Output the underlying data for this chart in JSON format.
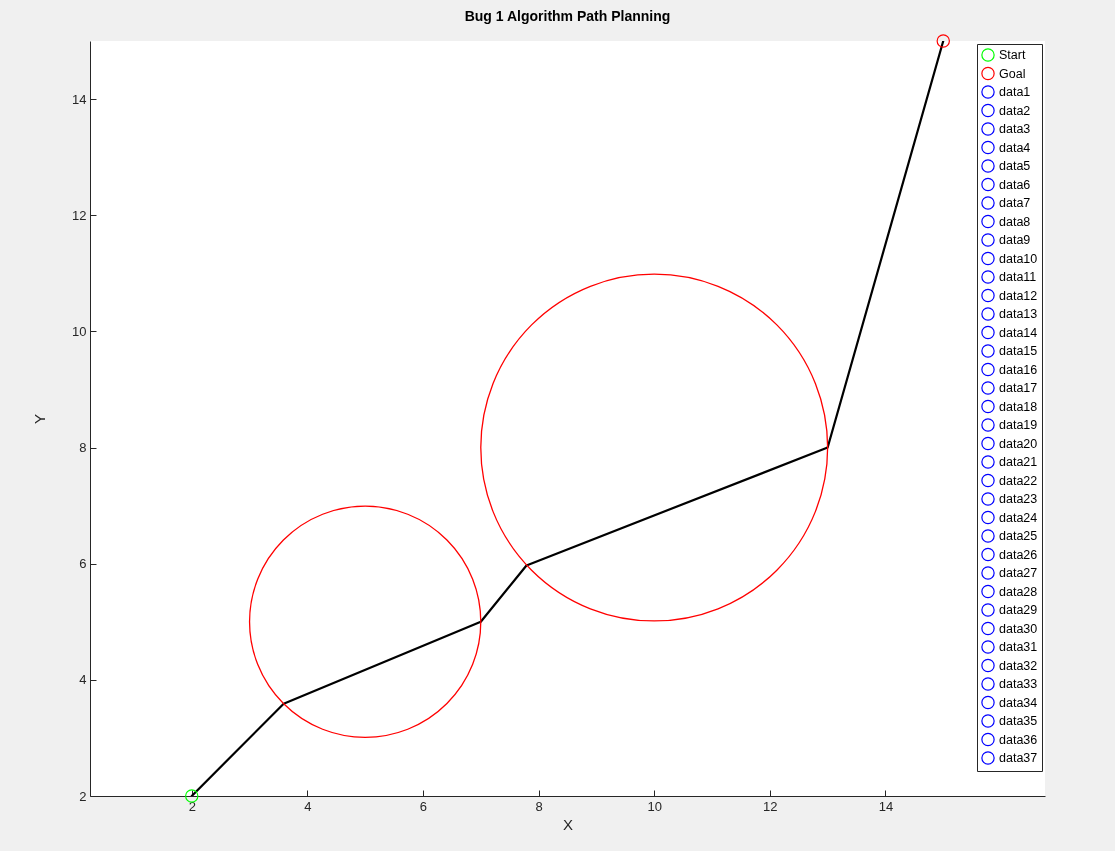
{
  "chart_data": {
    "type": "line",
    "title": "Bug 1 Algorithm Path Planning",
    "xlabel": "X",
    "ylabel": "Y",
    "xlim": [
      0.24,
      16.76
    ],
    "ylim": [
      2,
      15
    ],
    "xticks": [
      2,
      4,
      6,
      8,
      10,
      12,
      14
    ],
    "yticks": [
      2,
      4,
      6,
      8,
      10,
      12,
      14
    ],
    "grid": false,
    "legend": "top right",
    "series": [
      {
        "color": "#000000",
        "line_style": "solid",
        "marker": "none",
        "x": [
          2,
          3.59,
          7,
          7.79,
          13,
          15
        ],
        "values": [
          2,
          3.59,
          5,
          5.97,
          8,
          15
        ]
      },
      {
        "type": "scatter",
        "name": "Start",
        "color": "#00ff00",
        "marker": "circle",
        "x": [
          2
        ],
        "values": [
          2
        ]
      },
      {
        "type": "scatter",
        "name": "Goal",
        "color": "#ff0000",
        "marker": "circle",
        "x": [
          15
        ],
        "values": [
          15
        ]
      },
      {
        "type": "scatter",
        "name": "data1",
        "color": "#0000ff",
        "marker": "circle",
        "x": [
          null
        ],
        "values": [
          null
        ]
      },
      {
        "type": "scatter",
        "name": "data2",
        "color": "#0000ff",
        "marker": "circle",
        "x": [
          null
        ],
        "values": [
          null
        ]
      },
      {
        "type": "scatter",
        "name": "data3",
        "color": "#0000ff",
        "marker": "circle",
        "x": [
          null
        ],
        "values": [
          null
        ]
      },
      {
        "type": "scatter",
        "name": "data4",
        "color": "#0000ff",
        "marker": "circle",
        "x": [
          null
        ],
        "values": [
          null
        ]
      },
      {
        "type": "scatter",
        "name": "data5",
        "color": "#0000ff",
        "marker": "circle",
        "x": [
          null
        ],
        "values": [
          null
        ]
      },
      {
        "type": "scatter",
        "name": "data6",
        "color": "#0000ff",
        "marker": "circle",
        "x": [
          null
        ],
        "values": [
          null
        ]
      },
      {
        "type": "scatter",
        "name": "data7",
        "color": "#0000ff",
        "marker": "circle",
        "x": [
          null
        ],
        "values": [
          null
        ]
      },
      {
        "type": "scatter",
        "name": "data8",
        "color": "#0000ff",
        "marker": "circle",
        "x": [
          null
        ],
        "values": [
          null
        ]
      },
      {
        "type": "scatter",
        "name": "data9",
        "color": "#0000ff",
        "marker": "circle",
        "x": [
          null
        ],
        "values": [
          null
        ]
      },
      {
        "type": "scatter",
        "name": "data10",
        "color": "#0000ff",
        "marker": "circle",
        "x": [
          null
        ],
        "values": [
          null
        ]
      },
      {
        "type": "scatter",
        "name": "data11",
        "color": "#0000ff",
        "marker": "circle",
        "x": [
          null
        ],
        "values": [
          null
        ]
      },
      {
        "type": "scatter",
        "name": "data12",
        "color": "#0000ff",
        "marker": "circle",
        "x": [
          null
        ],
        "values": [
          null
        ]
      },
      {
        "type": "scatter",
        "name": "data13",
        "color": "#0000ff",
        "marker": "circle",
        "x": [
          null
        ],
        "values": [
          null
        ]
      },
      {
        "type": "scatter",
        "name": "data14",
        "color": "#0000ff",
        "marker": "circle",
        "x": [
          null
        ],
        "values": [
          null
        ]
      },
      {
        "type": "scatter",
        "name": "data15",
        "color": "#0000ff",
        "marker": "circle",
        "x": [
          null
        ],
        "values": [
          null
        ]
      },
      {
        "type": "scatter",
        "name": "data16",
        "color": "#0000ff",
        "marker": "circle",
        "x": [
          null
        ],
        "values": [
          null
        ]
      },
      {
        "type": "scatter",
        "name": "data17",
        "color": "#0000ff",
        "marker": "circle",
        "x": [
          null
        ],
        "values": [
          null
        ]
      },
      {
        "type": "scatter",
        "name": "data18",
        "color": "#0000ff",
        "marker": "circle",
        "x": [
          null
        ],
        "values": [
          null
        ]
      },
      {
        "type": "scatter",
        "name": "data19",
        "color": "#0000ff",
        "marker": "circle",
        "x": [
          null
        ],
        "values": [
          null
        ]
      },
      {
        "type": "scatter",
        "name": "data20",
        "color": "#0000ff",
        "marker": "circle",
        "x": [
          null
        ],
        "values": [
          null
        ]
      },
      {
        "type": "scatter",
        "name": "data21",
        "color": "#0000ff",
        "marker": "circle",
        "x": [
          null
        ],
        "values": [
          null
        ]
      },
      {
        "type": "scatter",
        "name": "data22",
        "color": "#0000ff",
        "marker": "circle",
        "x": [
          null
        ],
        "values": [
          null
        ]
      },
      {
        "type": "scatter",
        "name": "data23",
        "color": "#0000ff",
        "marker": "circle",
        "x": [
          null
        ],
        "values": [
          null
        ]
      },
      {
        "type": "scatter",
        "name": "data24",
        "color": "#0000ff",
        "marker": "circle",
        "x": [
          null
        ],
        "values": [
          null
        ]
      },
      {
        "type": "scatter",
        "name": "data25",
        "color": "#0000ff",
        "marker": "circle",
        "x": [
          null
        ],
        "values": [
          null
        ]
      },
      {
        "type": "scatter",
        "name": "data26",
        "color": "#0000ff",
        "marker": "circle",
        "x": [
          null
        ],
        "values": [
          null
        ]
      },
      {
        "type": "scatter",
        "name": "data27",
        "color": "#0000ff",
        "marker": "circle",
        "x": [
          null
        ],
        "values": [
          null
        ]
      },
      {
        "type": "scatter",
        "name": "data28",
        "color": "#0000ff",
        "marker": "circle",
        "x": [
          null
        ],
        "values": [
          null
        ]
      },
      {
        "type": "scatter",
        "name": "data29",
        "color": "#0000ff",
        "marker": "circle",
        "x": [
          null
        ],
        "values": [
          null
        ]
      },
      {
        "type": "scatter",
        "name": "data30",
        "color": "#0000ff",
        "marker": "circle",
        "x": [
          null
        ],
        "values": [
          null
        ]
      },
      {
        "type": "scatter",
        "name": "data31",
        "color": "#0000ff",
        "marker": "circle",
        "x": [
          null
        ],
        "values": [
          null
        ]
      },
      {
        "type": "scatter",
        "name": "data32",
        "color": "#0000ff",
        "marker": "circle",
        "x": [
          null
        ],
        "values": [
          null
        ]
      },
      {
        "type": "scatter",
        "name": "data33",
        "color": "#0000ff",
        "marker": "circle",
        "x": [
          null
        ],
        "values": [
          null
        ]
      },
      {
        "type": "scatter",
        "name": "data34",
        "color": "#0000ff",
        "marker": "circle",
        "x": [
          null
        ],
        "values": [
          null
        ]
      },
      {
        "type": "scatter",
        "name": "data35",
        "color": "#0000ff",
        "marker": "circle",
        "x": [
          null
        ],
        "values": [
          null
        ]
      },
      {
        "type": "scatter",
        "name": "data36",
        "color": "#0000ff",
        "marker": "circle",
        "x": [
          null
        ],
        "values": [
          null
        ]
      },
      {
        "type": "scatter",
        "name": "data37",
        "color": "#0000ff",
        "marker": "circle",
        "x": [
          null
        ],
        "values": [
          null
        ]
      }
    ]
  }
}
